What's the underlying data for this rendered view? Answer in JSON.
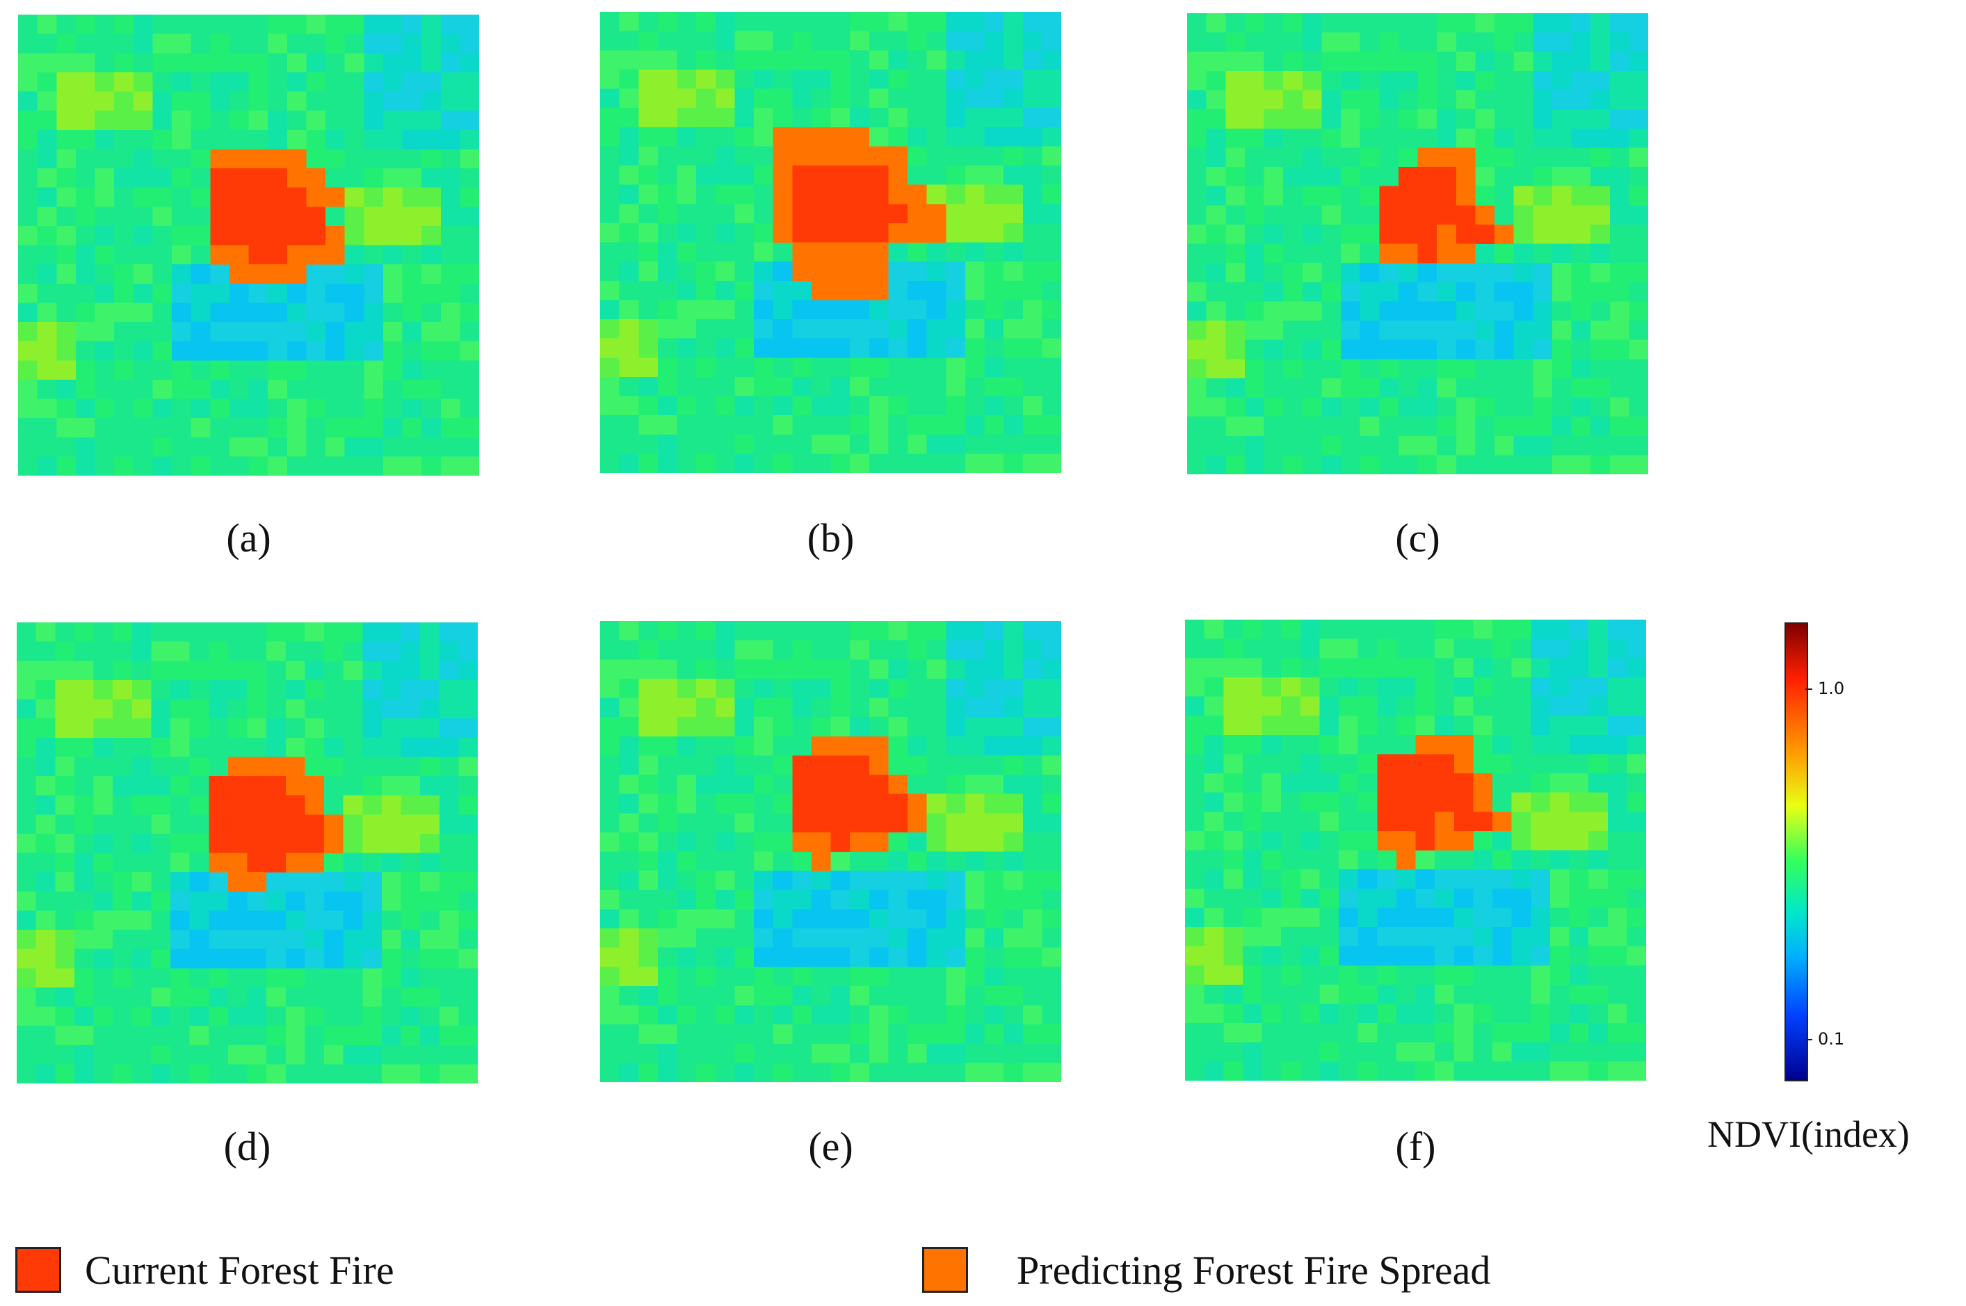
{
  "panels": [
    {
      "label": "(a)",
      "fire_state": "a"
    },
    {
      "label": "(b)",
      "fire_state": "b"
    },
    {
      "label": "(c)",
      "fire_state": "c"
    },
    {
      "label": "(d)",
      "fire_state": "d"
    },
    {
      "label": "(e)",
      "fire_state": "e"
    },
    {
      "label": "(f)",
      "fire_state": "f"
    }
  ],
  "colorbar": {
    "label": "NDVI(index)",
    "ticks": [
      "1.0",
      "0.1"
    ],
    "colormap": "jet"
  },
  "legend": [
    {
      "label": "Current Forest Fire",
      "color": "#ff3a06"
    },
    {
      "label": "Predicting Forest Fire Spread",
      "color": "#ff7400"
    }
  ],
  "colors": {
    "current_fire": "#ff3a06",
    "predicted_spread": "#ff7400"
  }
}
